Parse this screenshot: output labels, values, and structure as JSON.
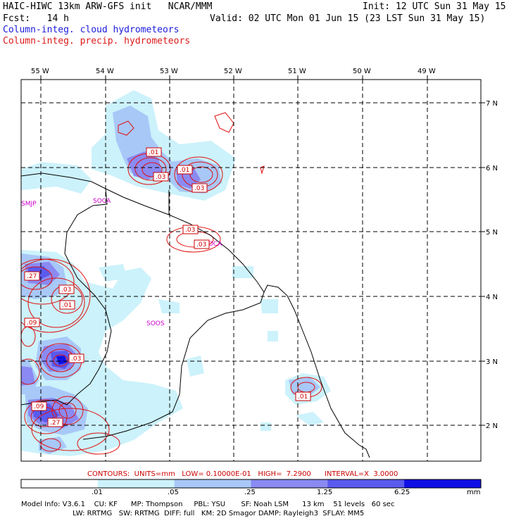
{
  "header": {
    "line1_left": "HAIC-HIWC 13km ARW-GFS init   NCAR/MMM",
    "line1_right": "Init: 12 UTC Sun 31 May 15",
    "line2_left": "Fcst:   14 h",
    "line2_right": "Valid: 02 UTC Mon 01 Jun 15 (23 LST Sun 31 May 15)",
    "legend_cloud": "Column-integ. cloud hydrometeors",
    "legend_precip": "Column-integ. precip. hydrometeors"
  },
  "map": {
    "lon_labels": [
      "55 W",
      "54 W",
      "53 W",
      "52 W",
      "51 W",
      "50 W",
      "49 W"
    ],
    "lat_labels": [
      "7 N",
      "6 N",
      "5 N",
      "4 N",
      "3 N",
      "2 N"
    ],
    "stations": [
      "SMJP",
      "SOCA",
      "SOCA",
      "SOOS"
    ],
    "contour_labels": [
      ".01",
      ".03",
      ".01",
      ".03",
      ".03",
      ".03",
      ".03",
      ".27",
      ".03",
      ".01",
      ".09",
      ".03",
      ".09",
      ".27",
      ".01"
    ]
  },
  "contours": "CONTOURS:  UNITS=mm   LOW= 0.10000E-01   HIGH=  7.2900      INTERVAL=X  3.0000",
  "colorbar": {
    "ticks": [
      ".01",
      ".05",
      ".25",
      "1.25",
      "6.25"
    ],
    "unit": "mm",
    "colors": [
      "#ffffff",
      "#ccf2fb",
      "#a8c8f8",
      "#8a8af2",
      "#5a5aee",
      "#1010e6"
    ]
  },
  "footer": {
    "line1": "Model Info: V3.6.1    CU: KF      MP: Thompson     PBL: YSU       SF: Noah LSM      13 km    51 levels   60 sec",
    "line2": "                       LW: RRTMG   SW: RRTMG  DIFF: full   KM: 2D Smagor DAMP: Rayleigh3  SFLAY: MM5"
  }
}
